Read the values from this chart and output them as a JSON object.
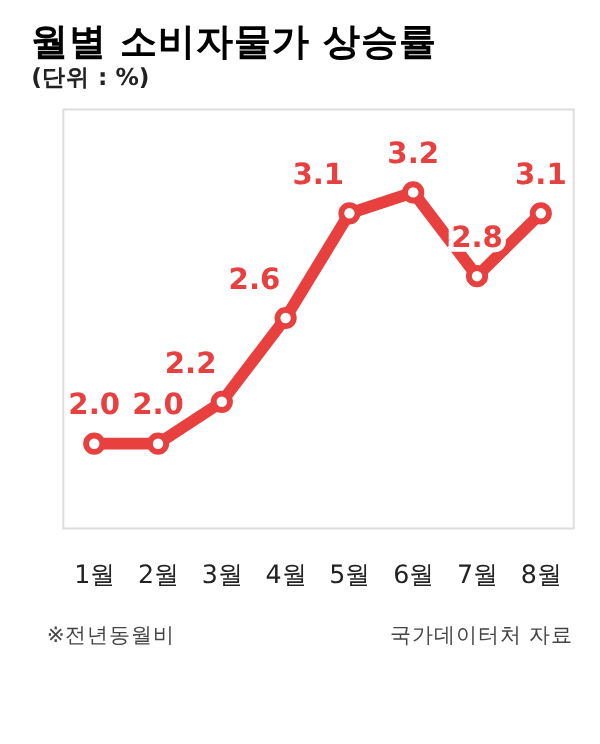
{
  "chart_data": {
    "type": "line",
    "title": "월별 소비자물가 상승률",
    "subtitle": "(단위 : %)",
    "categories": [
      "1월",
      "2월",
      "3월",
      "4월",
      "5월",
      "6월",
      "7월",
      "8월"
    ],
    "series": [
      {
        "color": "#e8403f",
        "values": [
          2.0,
          2.0,
          2.2,
          2.6,
          3.1,
          3.2,
          2.8,
          3.1
        ],
        "value_labels": [
          "2.0",
          "2.0",
          "2.2",
          "2.6",
          "3.1",
          "3.2",
          "2.8",
          "3.1"
        ]
      }
    ],
    "data_labels": true,
    "marker": "circle",
    "line_style": "solid",
    "grid": false,
    "legend": false,
    "annotations": [
      "※전년동월비",
      "국가데이터처 자료"
    ]
  }
}
